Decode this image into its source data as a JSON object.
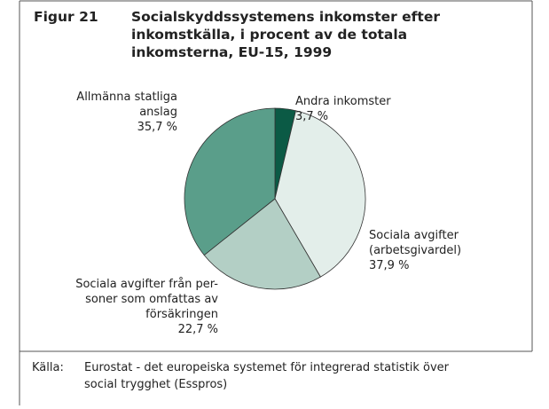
{
  "chart_data": {
    "type": "pie",
    "figure_label": "Figur 21",
    "title": [
      "Socialskyddssystemens inkomster efter",
      "inkomstkälla, i procent av de totala",
      "inkomsterna, EU-15, 1999"
    ],
    "categories": [
      [
        "Andra inkomster"
      ],
      [
        "Sociala avgifter",
        "(arbetsgivardel)"
      ],
      [
        "Sociala avgifter från per-",
        "soner som omfattas av",
        "försäkringen"
      ],
      [
        "Allmänna statliga",
        "anslag"
      ]
    ],
    "values": [
      3.7,
      37.9,
      22.7,
      35.7
    ],
    "value_labels": [
      "3,7 %",
      "37,9 %",
      "22,7 %",
      "35,7 %"
    ],
    "colors": [
      "#0b5a45",
      "#e3eeea",
      "#b3cfc5",
      "#5a9e8a"
    ],
    "source_label": "Källa:",
    "source": [
      "Eurostat - det europeiska systemet för integrerad statistik över",
      "social trygghet (Esspros)"
    ]
  }
}
